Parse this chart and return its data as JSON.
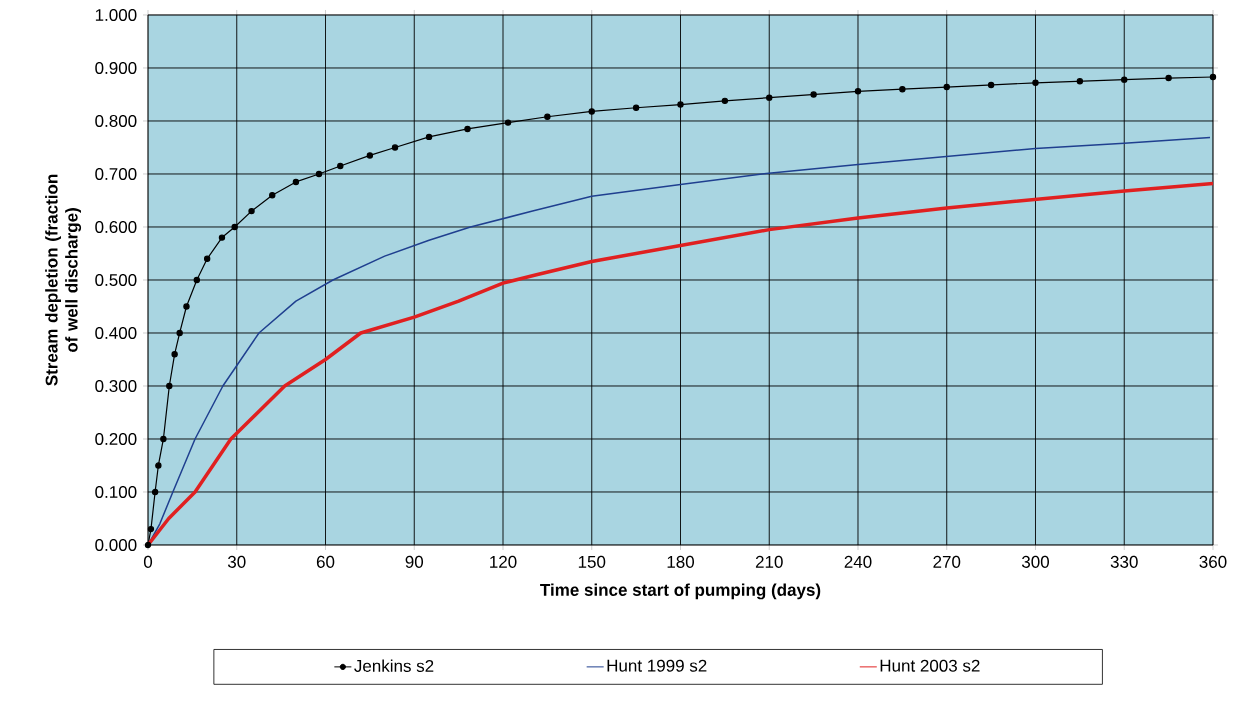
{
  "chart_data": {
    "type": "line",
    "xlabel": "Time since start of pumping (days)",
    "ylabel": "Stream depletion (fraction of well discharge)",
    "xlim": [
      0,
      360
    ],
    "ylim": [
      0,
      1
    ],
    "xticks": [
      0,
      30,
      60,
      90,
      120,
      150,
      180,
      210,
      240,
      270,
      300,
      330,
      360
    ],
    "yticks": [
      {
        "value": 0,
        "label": "0.000"
      },
      {
        "value": 0.1,
        "label": "0.100"
      },
      {
        "value": 0.2,
        "label": "0.200"
      },
      {
        "value": 0.3,
        "label": "0.300"
      },
      {
        "value": 0.4,
        "label": "0.400"
      },
      {
        "value": 0.5,
        "label": "0.500"
      },
      {
        "value": 0.6,
        "label": "0.600"
      },
      {
        "value": 0.7,
        "label": "0.700"
      },
      {
        "value": 0.8,
        "label": "0.800"
      },
      {
        "value": 0.9,
        "label": "0.900"
      },
      {
        "value": 1,
        "label": "1.000"
      }
    ],
    "grid": true,
    "legend": "bottom",
    "series": [
      {
        "name": "Jenkins s2",
        "color": "#000000",
        "marker": "circle",
        "x": [
          0,
          1,
          2.4,
          3.5,
          5.2,
          7.2,
          9,
          10.7,
          13,
          16.5,
          20,
          25,
          29.3,
          35,
          42,
          50,
          57.8,
          65,
          75,
          83.5,
          95,
          108,
          121.7,
          135,
          150,
          165,
          180,
          195,
          210,
          225,
          240,
          255,
          270,
          285,
          300,
          315,
          330,
          345,
          360
        ],
        "values": [
          0,
          0.03,
          0.1,
          0.15,
          0.2,
          0.3,
          0.36,
          0.4,
          0.45,
          0.5,
          0.54,
          0.58,
          0.6,
          0.63,
          0.66,
          0.685,
          0.7,
          0.715,
          0.735,
          0.75,
          0.77,
          0.785,
          0.797,
          0.808,
          0.818,
          0.825,
          0.831,
          0.838,
          0.844,
          0.85,
          0.856,
          0.86,
          0.864,
          0.868,
          0.872,
          0.875,
          0.878,
          0.881,
          0.883
        ]
      },
      {
        "name": "Hunt 1999 s2",
        "color": "#1f3f8f",
        "x": [
          0,
          4,
          8.4,
          15.9,
          25.3,
          37.5,
          50,
          62.5,
          80,
          95,
          109,
          130,
          150,
          180,
          209,
          240,
          270,
          300,
          330,
          359
        ],
        "values": [
          0,
          0.04,
          0.1,
          0.2,
          0.3,
          0.4,
          0.46,
          0.5,
          0.545,
          0.575,
          0.6,
          0.63,
          0.658,
          0.68,
          0.701,
          0.718,
          0.733,
          0.748,
          0.758,
          0.769
        ]
      },
      {
        "name": "Hunt 2003 s2",
        "color": "#e02020",
        "x": [
          0,
          7,
          15.9,
          28,
          46.2,
          60,
          71.9,
          90,
          105,
          120,
          131.3,
          150,
          180,
          210,
          240,
          270,
          300,
          330,
          360
        ],
        "values": [
          0,
          0.05,
          0.1,
          0.2,
          0.3,
          0.35,
          0.4,
          0.43,
          0.46,
          0.494,
          0.51,
          0.535,
          0.565,
          0.595,
          0.617,
          0.636,
          0.652,
          0.668,
          0.682
        ]
      }
    ]
  }
}
